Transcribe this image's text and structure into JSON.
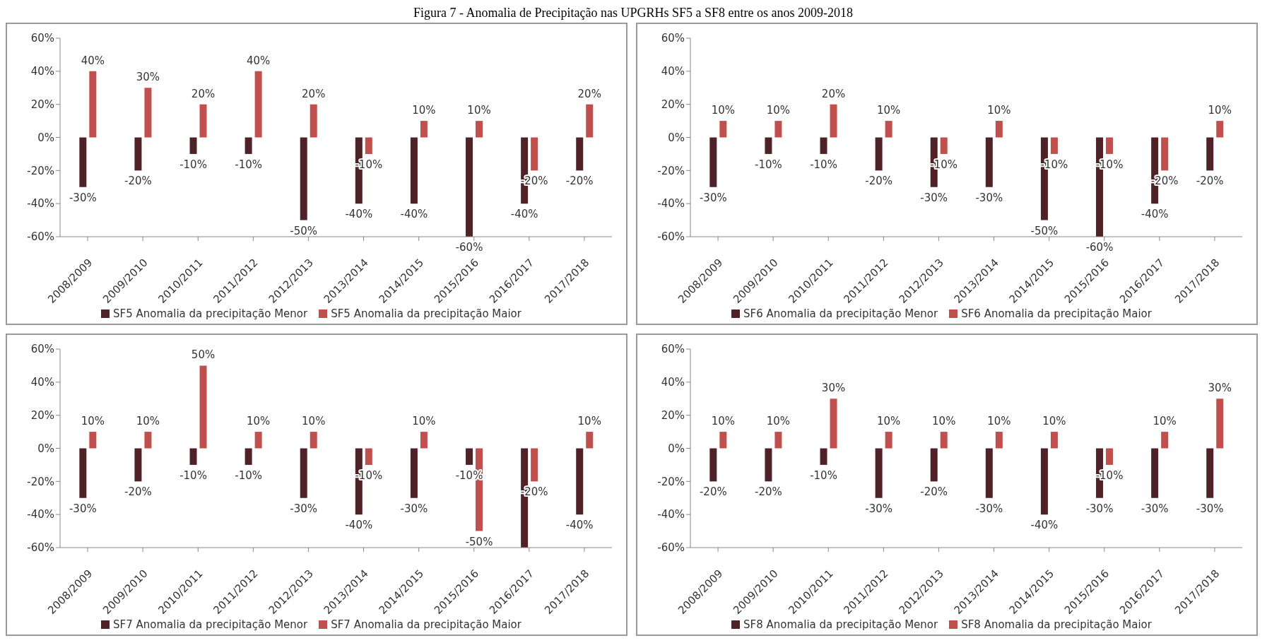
{
  "chart_data": [
    {
      "type": "bar",
      "title": "Figura 7 - Anomalia de Precipitação nas UPGRHs SF5 a SF8 entre os anos 2009-2018",
      "categories": [
        "2008/2009",
        "2009/2010",
        "2010/2011",
        "2011/2012",
        "2012/2013",
        "2013/2014",
        "2014/2015",
        "2015/2016",
        "2016/2017",
        "2017/2018"
      ],
      "ylim": [
        -60,
        60
      ],
      "yticks": [
        {
          "value": -60,
          "label": "-60%"
        },
        {
          "value": -40,
          "label": "-40%"
        },
        {
          "value": -20,
          "label": "-20%"
        },
        {
          "value": 0,
          "label": "0%"
        },
        {
          "value": 20,
          "label": "20%"
        },
        {
          "value": 40,
          "label": "40%"
        },
        {
          "value": 60,
          "label": "60%"
        }
      ],
      "legend": "bottom",
      "series": [
        {
          "name": "SF5 Anomalia da precipitação Menor",
          "color": "#4f2228",
          "values": [
            -30,
            -20,
            -10,
            -10,
            -50,
            -40,
            -40,
            -60,
            -40,
            -20
          ],
          "value_labels": [
            "-30%",
            "-20%",
            "-10%",
            "-10%",
            "-50%",
            "-40%",
            "-40%",
            "-60%",
            "-40%",
            "-20%"
          ]
        },
        {
          "name": "SF5 Anomalia da precipitação Maior",
          "color": "#c0504d",
          "values": [
            40,
            30,
            20,
            40,
            20,
            -10,
            10,
            10,
            -20,
            20
          ],
          "value_labels": [
            "40%",
            "30%",
            "20%",
            "40%",
            "20%",
            "-10%",
            "10%",
            "10%",
            "-20%",
            "20%"
          ]
        }
      ]
    },
    {
      "type": "bar",
      "categories": [
        "2008/2009",
        "2009/2010",
        "2010/2011",
        "2011/2012",
        "2012/2013",
        "2013/2014",
        "2014/2015",
        "2015/2016",
        "2016/2017",
        "2017/2018"
      ],
      "ylim": [
        -60,
        60
      ],
      "yticks": [
        {
          "value": -60,
          "label": "-60%"
        },
        {
          "value": -40,
          "label": "-40%"
        },
        {
          "value": -20,
          "label": "-20%"
        },
        {
          "value": 0,
          "label": "0%"
        },
        {
          "value": 20,
          "label": "20%"
        },
        {
          "value": 40,
          "label": "40%"
        },
        {
          "value": 60,
          "label": "60%"
        }
      ],
      "legend": "bottom",
      "series": [
        {
          "name": "SF6 Anomalia da precipitação Menor",
          "color": "#4f2228",
          "values": [
            -30,
            -10,
            -10,
            -20,
            -30,
            -30,
            -50,
            -60,
            -40,
            -20
          ],
          "value_labels": [
            "-30%",
            "-10%",
            "-10%",
            "-20%",
            "-30%",
            "-30%",
            "-50%",
            "-60%",
            "-40%",
            "-20%"
          ]
        },
        {
          "name": "SF6 Anomalia da precipitação Maior",
          "color": "#c0504d",
          "values": [
            10,
            10,
            20,
            10,
            -10,
            10,
            -10,
            -10,
            -20,
            10
          ],
          "value_labels": [
            "10%",
            "10%",
            "20%",
            "10%",
            "-10%",
            "10%",
            "-10%",
            "-10%",
            "-20%",
            "10%"
          ]
        }
      ]
    },
    {
      "type": "bar",
      "categories": [
        "2008/2009",
        "2009/2010",
        "2010/2011",
        "2011/2012",
        "2012/2013",
        "2013/2014",
        "2014/2015",
        "2015/2016",
        "2016/2017",
        "2017/2018"
      ],
      "ylim": [
        -60,
        60
      ],
      "yticks": [
        {
          "value": -60,
          "label": "-60%"
        },
        {
          "value": -40,
          "label": "-40%"
        },
        {
          "value": -20,
          "label": "-20%"
        },
        {
          "value": 0,
          "label": "0%"
        },
        {
          "value": 20,
          "label": "20%"
        },
        {
          "value": 40,
          "label": "40%"
        },
        {
          "value": 60,
          "label": "60%"
        }
      ],
      "legend": "bottom",
      "series": [
        {
          "name": "SF7 Anomalia da precipitação Menor",
          "color": "#4f2228",
          "values": [
            -30,
            -20,
            -10,
            -10,
            -30,
            -40,
            -30,
            -10,
            -60,
            -40
          ],
          "value_labels": [
            "-30%",
            "-20%",
            "-10%",
            "-10%",
            "-30%",
            "-40%",
            "-30%",
            "-10%",
            null,
            "-40%"
          ]
        },
        {
          "name": "SF7 Anomalia da precipitação Maior",
          "color": "#c0504d",
          "values": [
            10,
            10,
            50,
            10,
            10,
            -10,
            10,
            -50,
            -20,
            10
          ],
          "value_labels": [
            "10%",
            "10%",
            "50%",
            "10%",
            "10%",
            "-10%",
            "10%",
            "-50%",
            "-20%",
            "10%"
          ]
        }
      ]
    },
    {
      "type": "bar",
      "categories": [
        "2008/2009",
        "2009/2010",
        "2010/2011",
        "2011/2012",
        "2012/2013",
        "2013/2014",
        "2014/2015",
        "2015/2016",
        "2016/2017",
        "2017/2018"
      ],
      "ylim": [
        -60,
        60
      ],
      "yticks": [
        {
          "value": -60,
          "label": "-60%"
        },
        {
          "value": -40,
          "label": "-40%"
        },
        {
          "value": -20,
          "label": "-20%"
        },
        {
          "value": 0,
          "label": "0%"
        },
        {
          "value": 20,
          "label": "20%"
        },
        {
          "value": 40,
          "label": "40%"
        },
        {
          "value": 60,
          "label": "60%"
        }
      ],
      "legend": "bottom",
      "series": [
        {
          "name": "SF8 Anomalia da precipitação Menor",
          "color": "#4f2228",
          "values": [
            -20,
            -20,
            -10,
            -30,
            -20,
            -30,
            -40,
            -30,
            -30,
            -30
          ],
          "value_labels": [
            "-20%",
            "-20%",
            "-10%",
            "-30%",
            "-20%",
            "-30%",
            "-40%",
            "-30%",
            "-30%",
            "-30%"
          ]
        },
        {
          "name": "SF8 Anomalia da precipitação Maior",
          "color": "#c0504d",
          "values": [
            10,
            10,
            30,
            10,
            10,
            10,
            10,
            -10,
            10,
            30
          ],
          "value_labels": [
            "10%",
            "10%",
            "30%",
            "10%",
            "10%",
            "10%",
            "10%",
            "-10%",
            "10%",
            "30%"
          ]
        }
      ]
    }
  ]
}
